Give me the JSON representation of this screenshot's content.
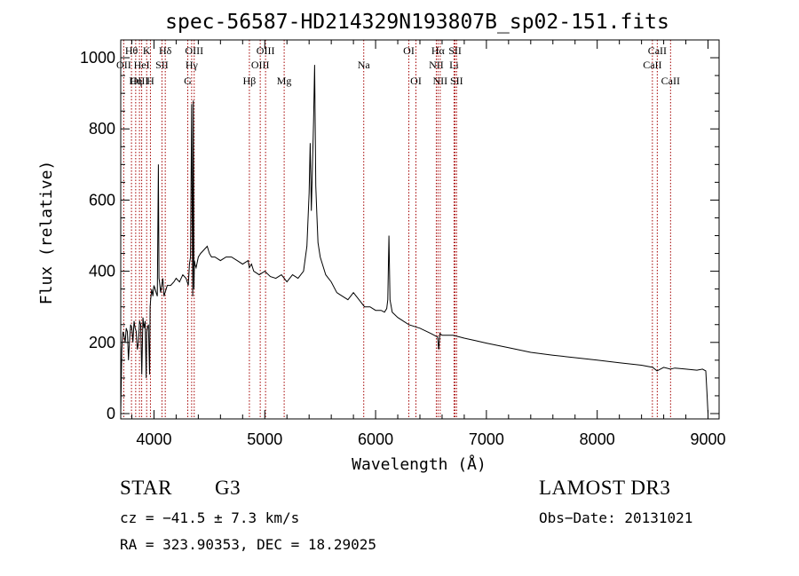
{
  "chart_data": {
    "type": "line",
    "title": "spec-56587-HD214329N193807B_sp02-151.fits",
    "xlabel": "Wavelength (Å)",
    "ylabel": "Flux (relative)",
    "xlim": [
      3700,
      9100
    ],
    "ylim": [
      -15,
      1050
    ],
    "xticks": [
      4000,
      5000,
      6000,
      7000,
      8000,
      9000
    ],
    "yticks": [
      0,
      200,
      400,
      600,
      800,
      1000
    ],
    "series": [
      {
        "name": "flux",
        "x": [
          3700,
          3710,
          3720,
          3730,
          3740,
          3750,
          3760,
          3770,
          3780,
          3790,
          3800,
          3810,
          3820,
          3830,
          3840,
          3850,
          3860,
          3870,
          3880,
          3890,
          3900,
          3910,
          3920,
          3930,
          3935,
          3940,
          3950,
          3960,
          3965,
          3970,
          3980,
          3990,
          4000,
          4010,
          4020,
          4030,
          4040,
          4045,
          4050,
          4060,
          4070,
          4080,
          4090,
          4100,
          4110,
          4120,
          4150,
          4180,
          4200,
          4230,
          4260,
          4290,
          4310,
          4320,
          4330,
          4340,
          4350,
          4355,
          4360,
          4365,
          4370,
          4380,
          4400,
          4420,
          4450,
          4480,
          4500,
          4520,
          4550,
          4600,
          4650,
          4700,
          4750,
          4800,
          4850,
          4860,
          4880,
          4900,
          4950,
          5000,
          5050,
          5100,
          5150,
          5200,
          5250,
          5300,
          5350,
          5380,
          5400,
          5410,
          5420,
          5430,
          5440,
          5450,
          5460,
          5470,
          5480,
          5500,
          5550,
          5600,
          5650,
          5700,
          5750,
          5800,
          5850,
          5900,
          5950,
          6000,
          6050,
          6080,
          6100,
          6110,
          6120,
          6130,
          6150,
          6200,
          6300,
          6400,
          6500,
          6560,
          6570,
          6580,
          6600,
          6700,
          6800,
          6900,
          7000,
          7200,
          7400,
          7600,
          7800,
          8000,
          8200,
          8400,
          8500,
          8540,
          8600,
          8660,
          8700,
          8800,
          8900,
          8950,
          8980,
          8990,
          9000
        ],
        "values": [
          0,
          180,
          230,
          220,
          200,
          240,
          230,
          150,
          210,
          250,
          240,
          200,
          260,
          240,
          230,
          180,
          200,
          260,
          250,
          110,
          270,
          240,
          260,
          100,
          230,
          240,
          250,
          110,
          300,
          320,
          350,
          330,
          360,
          350,
          340,
          330,
          700,
          380,
          370,
          340,
          360,
          380,
          330,
          340,
          350,
          360,
          360,
          370,
          380,
          370,
          390,
          380,
          360,
          420,
          440,
          870,
          330,
          880,
          350,
          430,
          420,
          410,
          440,
          450,
          460,
          470,
          450,
          440,
          440,
          430,
          440,
          440,
          430,
          420,
          430,
          410,
          420,
          400,
          390,
          400,
          385,
          380,
          390,
          370,
          390,
          380,
          400,
          470,
          620,
          760,
          570,
          690,
          820,
          980,
          640,
          560,
          480,
          440,
          390,
          370,
          340,
          330,
          320,
          340,
          320,
          300,
          300,
          290,
          290,
          285,
          295,
          320,
          500,
          320,
          285,
          270,
          250,
          240,
          225,
          215,
          180,
          225,
          220,
          220,
          212,
          205,
          198,
          185,
          172,
          164,
          157,
          150,
          143,
          136,
          130,
          120,
          130,
          125,
          128,
          125,
          122,
          125,
          120,
          60,
          0
        ]
      }
    ],
    "emission_lines": [
      {
        "label": "Hθ",
        "wl": 3797,
        "row": 1
      },
      {
        "label": "OII",
        "wl": 3727,
        "row": 2
      },
      {
        "label": "OIII",
        "wl": 3869,
        "row": 3
      },
      {
        "label": "K",
        "wl": 3934,
        "row": 1
      },
      {
        "label": "HeI",
        "wl": 3889,
        "row": 2
      },
      {
        "label": "Hη",
        "wl": 3835,
        "row": 3
      },
      {
        "label": "Hδ",
        "wl": 4102,
        "row": 1
      },
      {
        "label": "SII",
        "wl": 4072,
        "row": 2
      },
      {
        "label": "H",
        "wl": 3968,
        "row": 3
      },
      {
        "label": "OIII",
        "wl": 4363,
        "row": 1
      },
      {
        "label": "Hγ",
        "wl": 4340,
        "row": 2
      },
      {
        "label": "G",
        "wl": 4305,
        "row": 3
      },
      {
        "label": "OIII",
        "wl": 5007,
        "row": 1
      },
      {
        "label": "OIII",
        "wl": 4959,
        "row": 2
      },
      {
        "label": "Hβ",
        "wl": 4861,
        "row": 3
      },
      {
        "label": "Mg",
        "wl": 5175,
        "row": 3
      },
      {
        "label": "Na",
        "wl": 5893,
        "row": 2
      },
      {
        "label": "OI",
        "wl": 6300,
        "row": 1
      },
      {
        "label": "OI",
        "wl": 6364,
        "row": 3
      },
      {
        "label": "Hα",
        "wl": 6563,
        "row": 1
      },
      {
        "label": "NII",
        "wl": 6548,
        "row": 2
      },
      {
        "label": "NII",
        "wl": 6583,
        "row": 3
      },
      {
        "label": "SII",
        "wl": 6717,
        "row": 1
      },
      {
        "label": "Li",
        "wl": 6708,
        "row": 2
      },
      {
        "label": "SII",
        "wl": 6731,
        "row": 3
      },
      {
        "label": "CaII",
        "wl": 8542,
        "row": 1
      },
      {
        "label": "CaII",
        "wl": 8498,
        "row": 2
      },
      {
        "label": "CaII",
        "wl": 8662,
        "row": 3
      }
    ]
  },
  "info": {
    "object_class": "STAR",
    "subclass": "G3",
    "survey": "LAMOST DR3",
    "cz": "cz = −41.5 ± 7.3 km/s",
    "obs_date": "Obs−Date: 20131021",
    "coords": "RA = 323.90353, DEC =  18.29025"
  }
}
